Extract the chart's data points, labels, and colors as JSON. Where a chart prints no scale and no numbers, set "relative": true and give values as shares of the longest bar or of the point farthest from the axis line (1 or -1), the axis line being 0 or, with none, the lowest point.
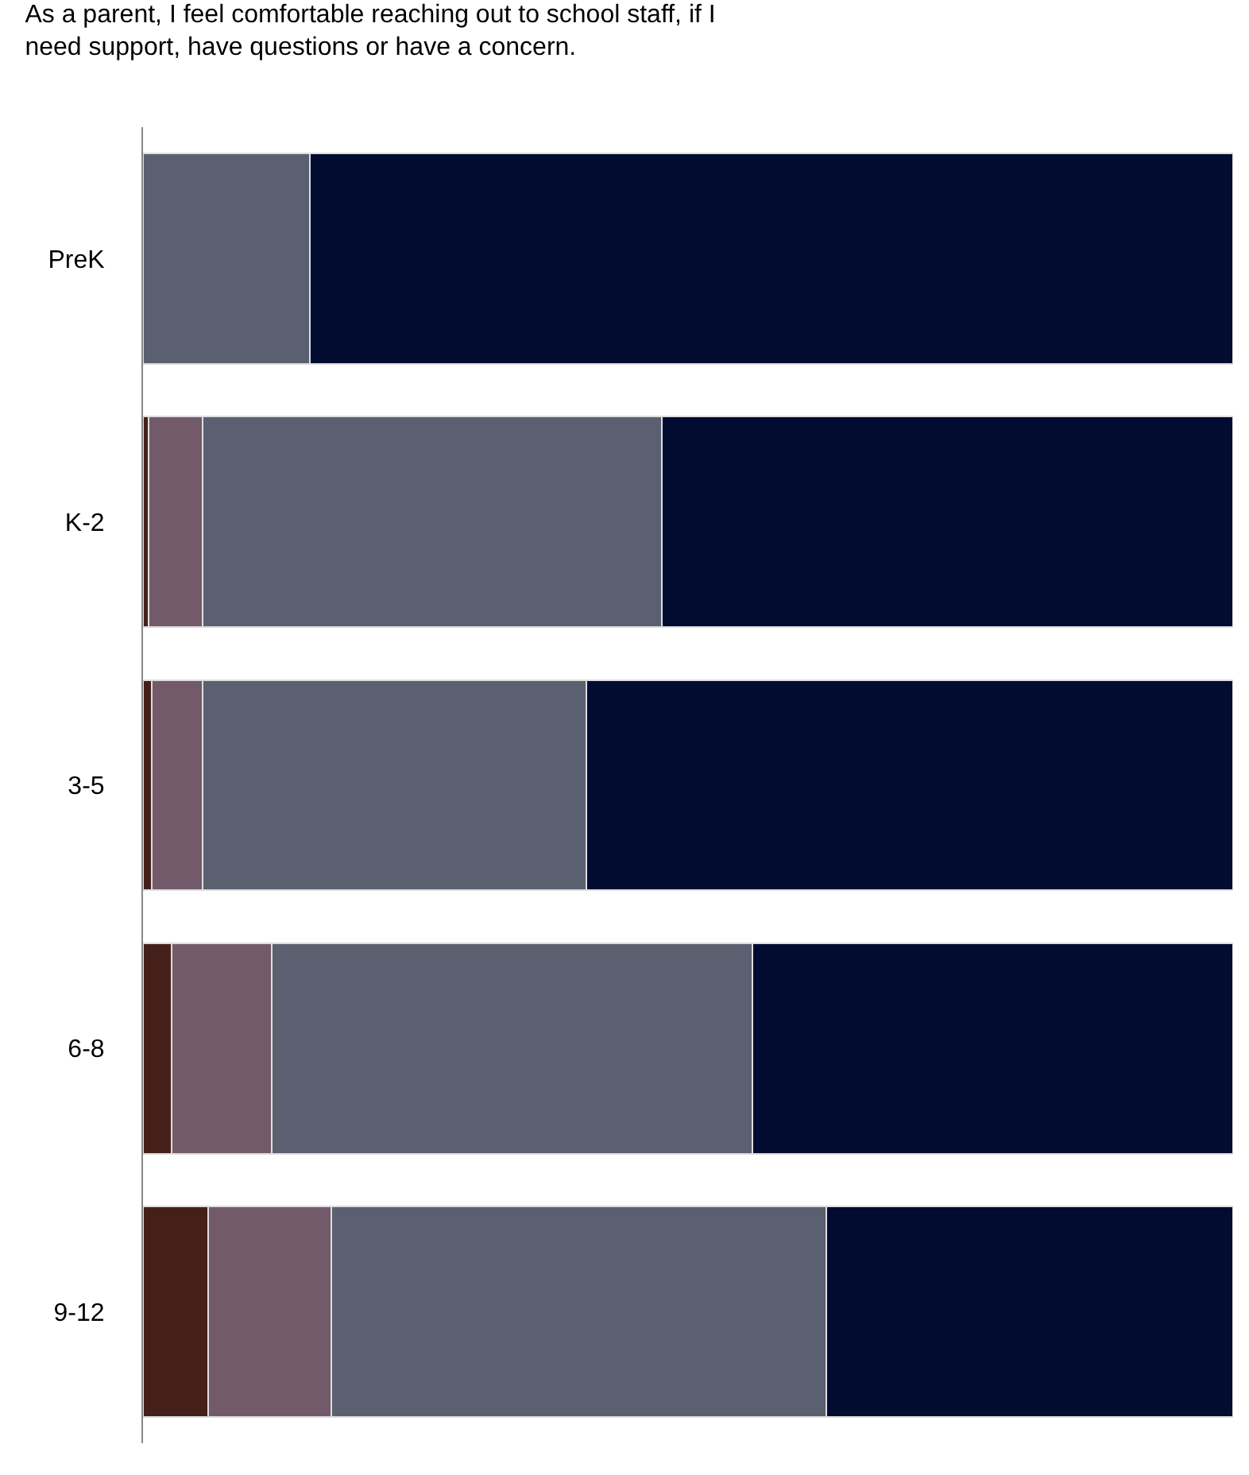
{
  "chart_data": {
    "type": "bar",
    "orientation": "horizontal",
    "stacked": true,
    "relative": true,
    "title": "As a parent, I feel comfortable reaching out to school staff, if I need support, have questions or have a concern.",
    "categories": [
      "PreK",
      "K-2",
      "3-5",
      "6-8",
      "9-12"
    ],
    "series": [
      {
        "color": "#45201a",
        "values": [
          null,
          0.005,
          0.008,
          0.026,
          0.06
        ]
      },
      {
        "color": "#735a6b",
        "values": [
          null,
          0.05,
          0.047,
          0.092,
          0.113
        ]
      },
      {
        "color": "#5a6070",
        "values": [
          0.153,
          0.421,
          0.352,
          0.441,
          0.454
        ]
      },
      {
        "color": "#020b30",
        "values": [
          0.847,
          0.524,
          0.593,
          0.441,
          0.373
        ]
      }
    ]
  }
}
